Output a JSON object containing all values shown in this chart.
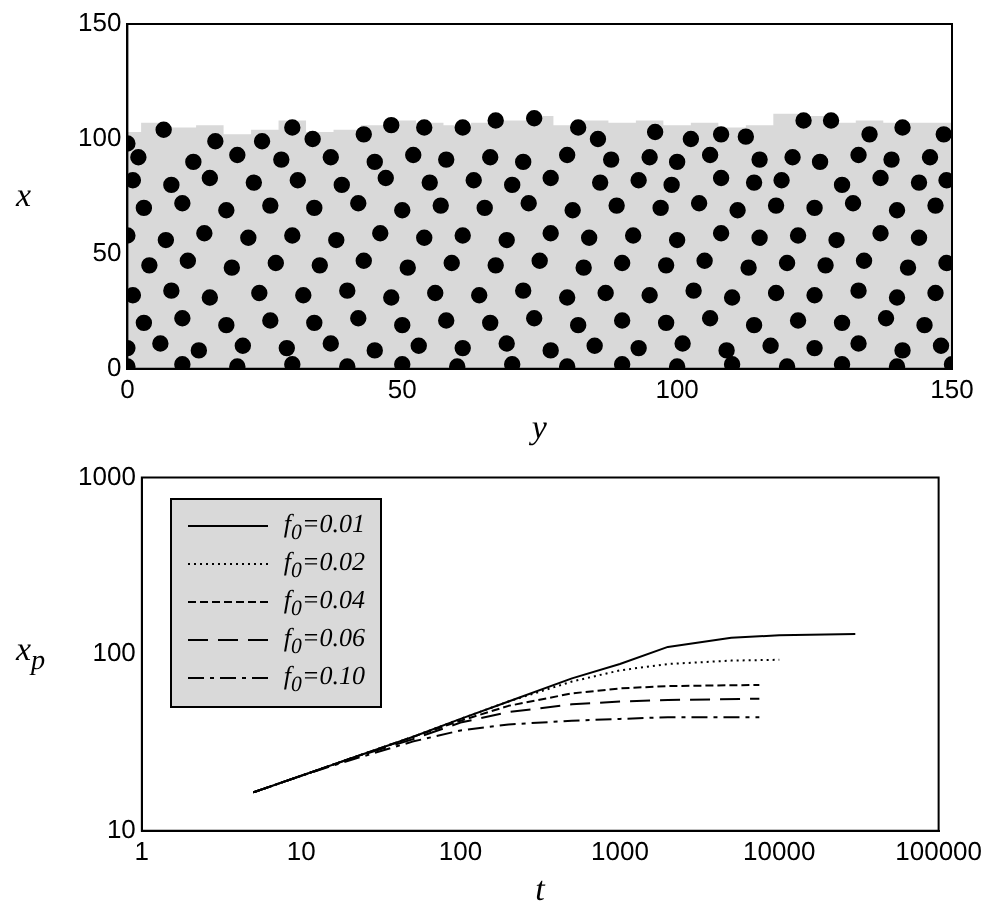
{
  "chart_data": [
    {
      "type": "scatter",
      "xlabel": "y",
      "ylabel": "x",
      "xlim": [
        0,
        150
      ],
      "ylim": [
        0,
        150
      ],
      "xticks": [
        0,
        50,
        100,
        150
      ],
      "yticks": [
        0,
        50,
        100,
        150
      ],
      "grid": false,
      "marker": "circle",
      "series": [
        {
          "type": "area",
          "marker": "none",
          "color": "#d9d9d9",
          "x": [
            0,
            5,
            10,
            15,
            20,
            25,
            30,
            35,
            40,
            45,
            50,
            55,
            60,
            65,
            70,
            75,
            80,
            85,
            90,
            95,
            100,
            105,
            110,
            115,
            120,
            125,
            130,
            135,
            140,
            145,
            150
          ],
          "values": [
            103,
            107,
            105,
            106,
            102,
            104,
            108,
            103,
            104,
            106,
            108,
            107,
            106,
            107,
            108,
            110,
            106,
            108,
            107,
            108,
            106,
            107,
            105,
            106,
            111,
            110,
            107,
            108,
            107,
            107,
            107
          ]
        },
        {
          "color": "#000000",
          "x": [
            0,
            6.6,
            16,
            24.5,
            30,
            33.7,
            43,
            48,
            54,
            61,
            67,
            74,
            82,
            85.6,
            96,
            102.5,
            108,
            112.5,
            123,
            128,
            135,
            141,
            148.5
          ],
          "values": [
            98,
            104,
            99,
            99,
            105,
            100,
            102,
            106,
            105,
            105,
            108,
            109,
            105,
            100,
            103,
            100,
            102,
            101,
            108,
            108,
            102,
            105,
            102
          ]
        },
        {
          "color": "#000000",
          "x": [
            2,
            12,
            20,
            28,
            37,
            45,
            52,
            58,
            66,
            72,
            80,
            88,
            95,
            100,
            106,
            115,
            121,
            126,
            133,
            139,
            146
          ],
          "values": [
            92,
            90,
            93,
            91,
            92,
            90,
            93,
            91,
            92,
            90,
            93,
            91,
            92,
            90,
            93,
            91,
            92,
            90,
            93,
            91,
            92
          ]
        },
        {
          "color": "#000000",
          "x": [
            1,
            8,
            15,
            23,
            31,
            39,
            47,
            55,
            63,
            70,
            77,
            86,
            93,
            99,
            108,
            114,
            119,
            130,
            137,
            144,
            149
          ],
          "values": [
            82,
            80,
            83,
            81,
            82,
            80,
            83,
            81,
            82,
            80,
            83,
            81,
            82,
            80,
            83,
            81,
            82,
            80,
            83,
            81,
            82
          ]
        },
        {
          "color": "#000000",
          "x": [
            3,
            10,
            18,
            26,
            34,
            42,
            50,
            57,
            65,
            73,
            81,
            89,
            97,
            104,
            111,
            118,
            125,
            132,
            140,
            147
          ],
          "values": [
            70,
            72,
            69,
            71,
            70,
            72,
            69,
            71,
            70,
            72,
            69,
            71,
            70,
            72,
            69,
            71,
            70,
            72,
            69,
            71
          ]
        },
        {
          "color": "#000000",
          "x": [
            0,
            7,
            14,
            22,
            30,
            38,
            46,
            54,
            61,
            69,
            77,
            84,
            92,
            100,
            108,
            115,
            122,
            129,
            137,
            144
          ],
          "values": [
            58,
            56,
            59,
            57,
            58,
            56,
            59,
            57,
            58,
            56,
            59,
            57,
            58,
            56,
            59,
            57,
            58,
            56,
            59,
            57
          ]
        },
        {
          "color": "#000000",
          "x": [
            4,
            11,
            19,
            27,
            35,
            43,
            51,
            59,
            67,
            75,
            83,
            90,
            98,
            105,
            113,
            120,
            127,
            134,
            142,
            149
          ],
          "values": [
            45,
            47,
            44,
            46,
            45,
            47,
            44,
            46,
            45,
            47,
            44,
            46,
            45,
            47,
            44,
            46,
            45,
            47,
            44,
            46
          ]
        },
        {
          "color": "#000000",
          "x": [
            1,
            8,
            15,
            24,
            32,
            40,
            48,
            56,
            64,
            72,
            80,
            87,
            95,
            103,
            110,
            118,
            125,
            133,
            140,
            147
          ],
          "values": [
            32,
            34,
            31,
            33,
            32,
            34,
            31,
            33,
            32,
            34,
            31,
            33,
            32,
            34,
            31,
            33,
            32,
            34,
            31,
            33
          ]
        },
        {
          "color": "#000000",
          "x": [
            3,
            10,
            18,
            26,
            34,
            42,
            50,
            58,
            66,
            74,
            82,
            90,
            98,
            106,
            114,
            122,
            130,
            138,
            145
          ],
          "values": [
            20,
            22,
            19,
            21,
            20,
            22,
            19,
            21,
            20,
            22,
            19,
            21,
            20,
            22,
            19,
            21,
            20,
            22,
            19
          ]
        },
        {
          "color": "#000000",
          "x": [
            0,
            6,
            13,
            21,
            29,
            37,
            45,
            53,
            61,
            69,
            77,
            85,
            93,
            101,
            109,
            117,
            125,
            133,
            141,
            148
          ],
          "values": [
            9,
            11,
            8,
            10,
            9,
            11,
            8,
            10,
            9,
            11,
            8,
            10,
            9,
            11,
            8,
            10,
            9,
            11,
            8,
            10
          ]
        },
        {
          "color": "#000000",
          "x": [
            0,
            10,
            20,
            30,
            40,
            50,
            60,
            70,
            80,
            90,
            100,
            110,
            120,
            130,
            140,
            150
          ],
          "values": [
            1,
            2,
            1,
            2,
            1,
            2,
            1,
            2,
            1,
            2,
            1,
            2,
            1,
            2,
            1,
            2
          ]
        }
      ]
    },
    {
      "type": "line",
      "xlabel": "t",
      "ylabel": "x$_{p}$",
      "log": "xy",
      "xlim": [
        1,
        100000
      ],
      "ylim": [
        10,
        1000
      ],
      "xticks": [
        1,
        10,
        100,
        1000,
        10000,
        100000
      ],
      "yticks": [
        10,
        100,
        1000
      ],
      "grid": false,
      "legend": "top left",
      "marker": "none",
      "series": [
        {
          "name": "f$_{0}$=0.01",
          "color": "#000000",
          "line_style": "solid",
          "x": [
            5,
            10,
            20,
            50,
            100,
            200,
            500,
            1000,
            2000,
            5000,
            10000,
            30000
          ],
          "values": [
            16.5,
            20.5,
            25.5,
            34,
            43,
            54,
            73,
            88,
            110,
            124,
            128,
            130
          ]
        },
        {
          "name": "f$_{0}$=0.02",
          "color": "#000000",
          "line_style": "dotted",
          "x": [
            5,
            10,
            20,
            50,
            100,
            200,
            500,
            1000,
            2000,
            5000,
            10000
          ],
          "values": [
            16.5,
            20.5,
            25.5,
            34,
            43,
            54,
            70,
            81,
            88,
            92,
            93
          ]
        },
        {
          "name": "f$_{0}$=0.04",
          "color": "#000000",
          "line_style": "dashed",
          "x": [
            5,
            10,
            20,
            50,
            100,
            200,
            500,
            1000,
            2000,
            7500
          ],
          "values": [
            16.5,
            20.5,
            25.5,
            34,
            42,
            51,
            60,
            64,
            66,
            67
          ]
        },
        {
          "name": "f$_{0}$=0.06",
          "color": "#000000",
          "line_style": "longdashed",
          "x": [
            5,
            10,
            20,
            50,
            100,
            200,
            500,
            1000,
            2000,
            7500
          ],
          "values": [
            16.5,
            20.5,
            25.5,
            33,
            41,
            47,
            52,
            54,
            55,
            56
          ]
        },
        {
          "name": "f$_{0}$=0.10",
          "color": "#000000",
          "line_style": "dashdot",
          "x": [
            5,
            10,
            20,
            50,
            100,
            200,
            500,
            1000,
            2000,
            7500
          ],
          "values": [
            16.5,
            20.5,
            25,
            32,
            37,
            40,
            42,
            43,
            44,
            44
          ]
        }
      ]
    }
  ]
}
